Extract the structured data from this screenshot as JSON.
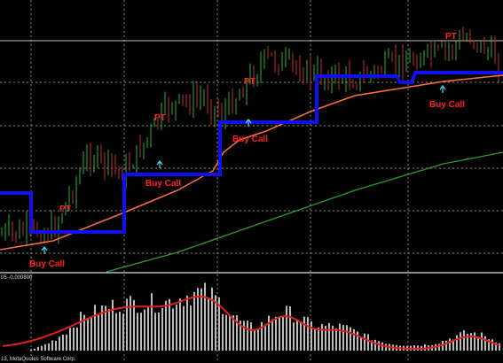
{
  "annotations": {
    "pt": [
      "PT",
      "PT",
      "PT",
      "PT"
    ],
    "buy_call": [
      "Buy Call",
      "Buy Call",
      "Buy Call",
      "Buy Call"
    ]
  },
  "indicator_label": "05 -0.000800",
  "footer": "13, MetaQuotes Software Corp."
}
